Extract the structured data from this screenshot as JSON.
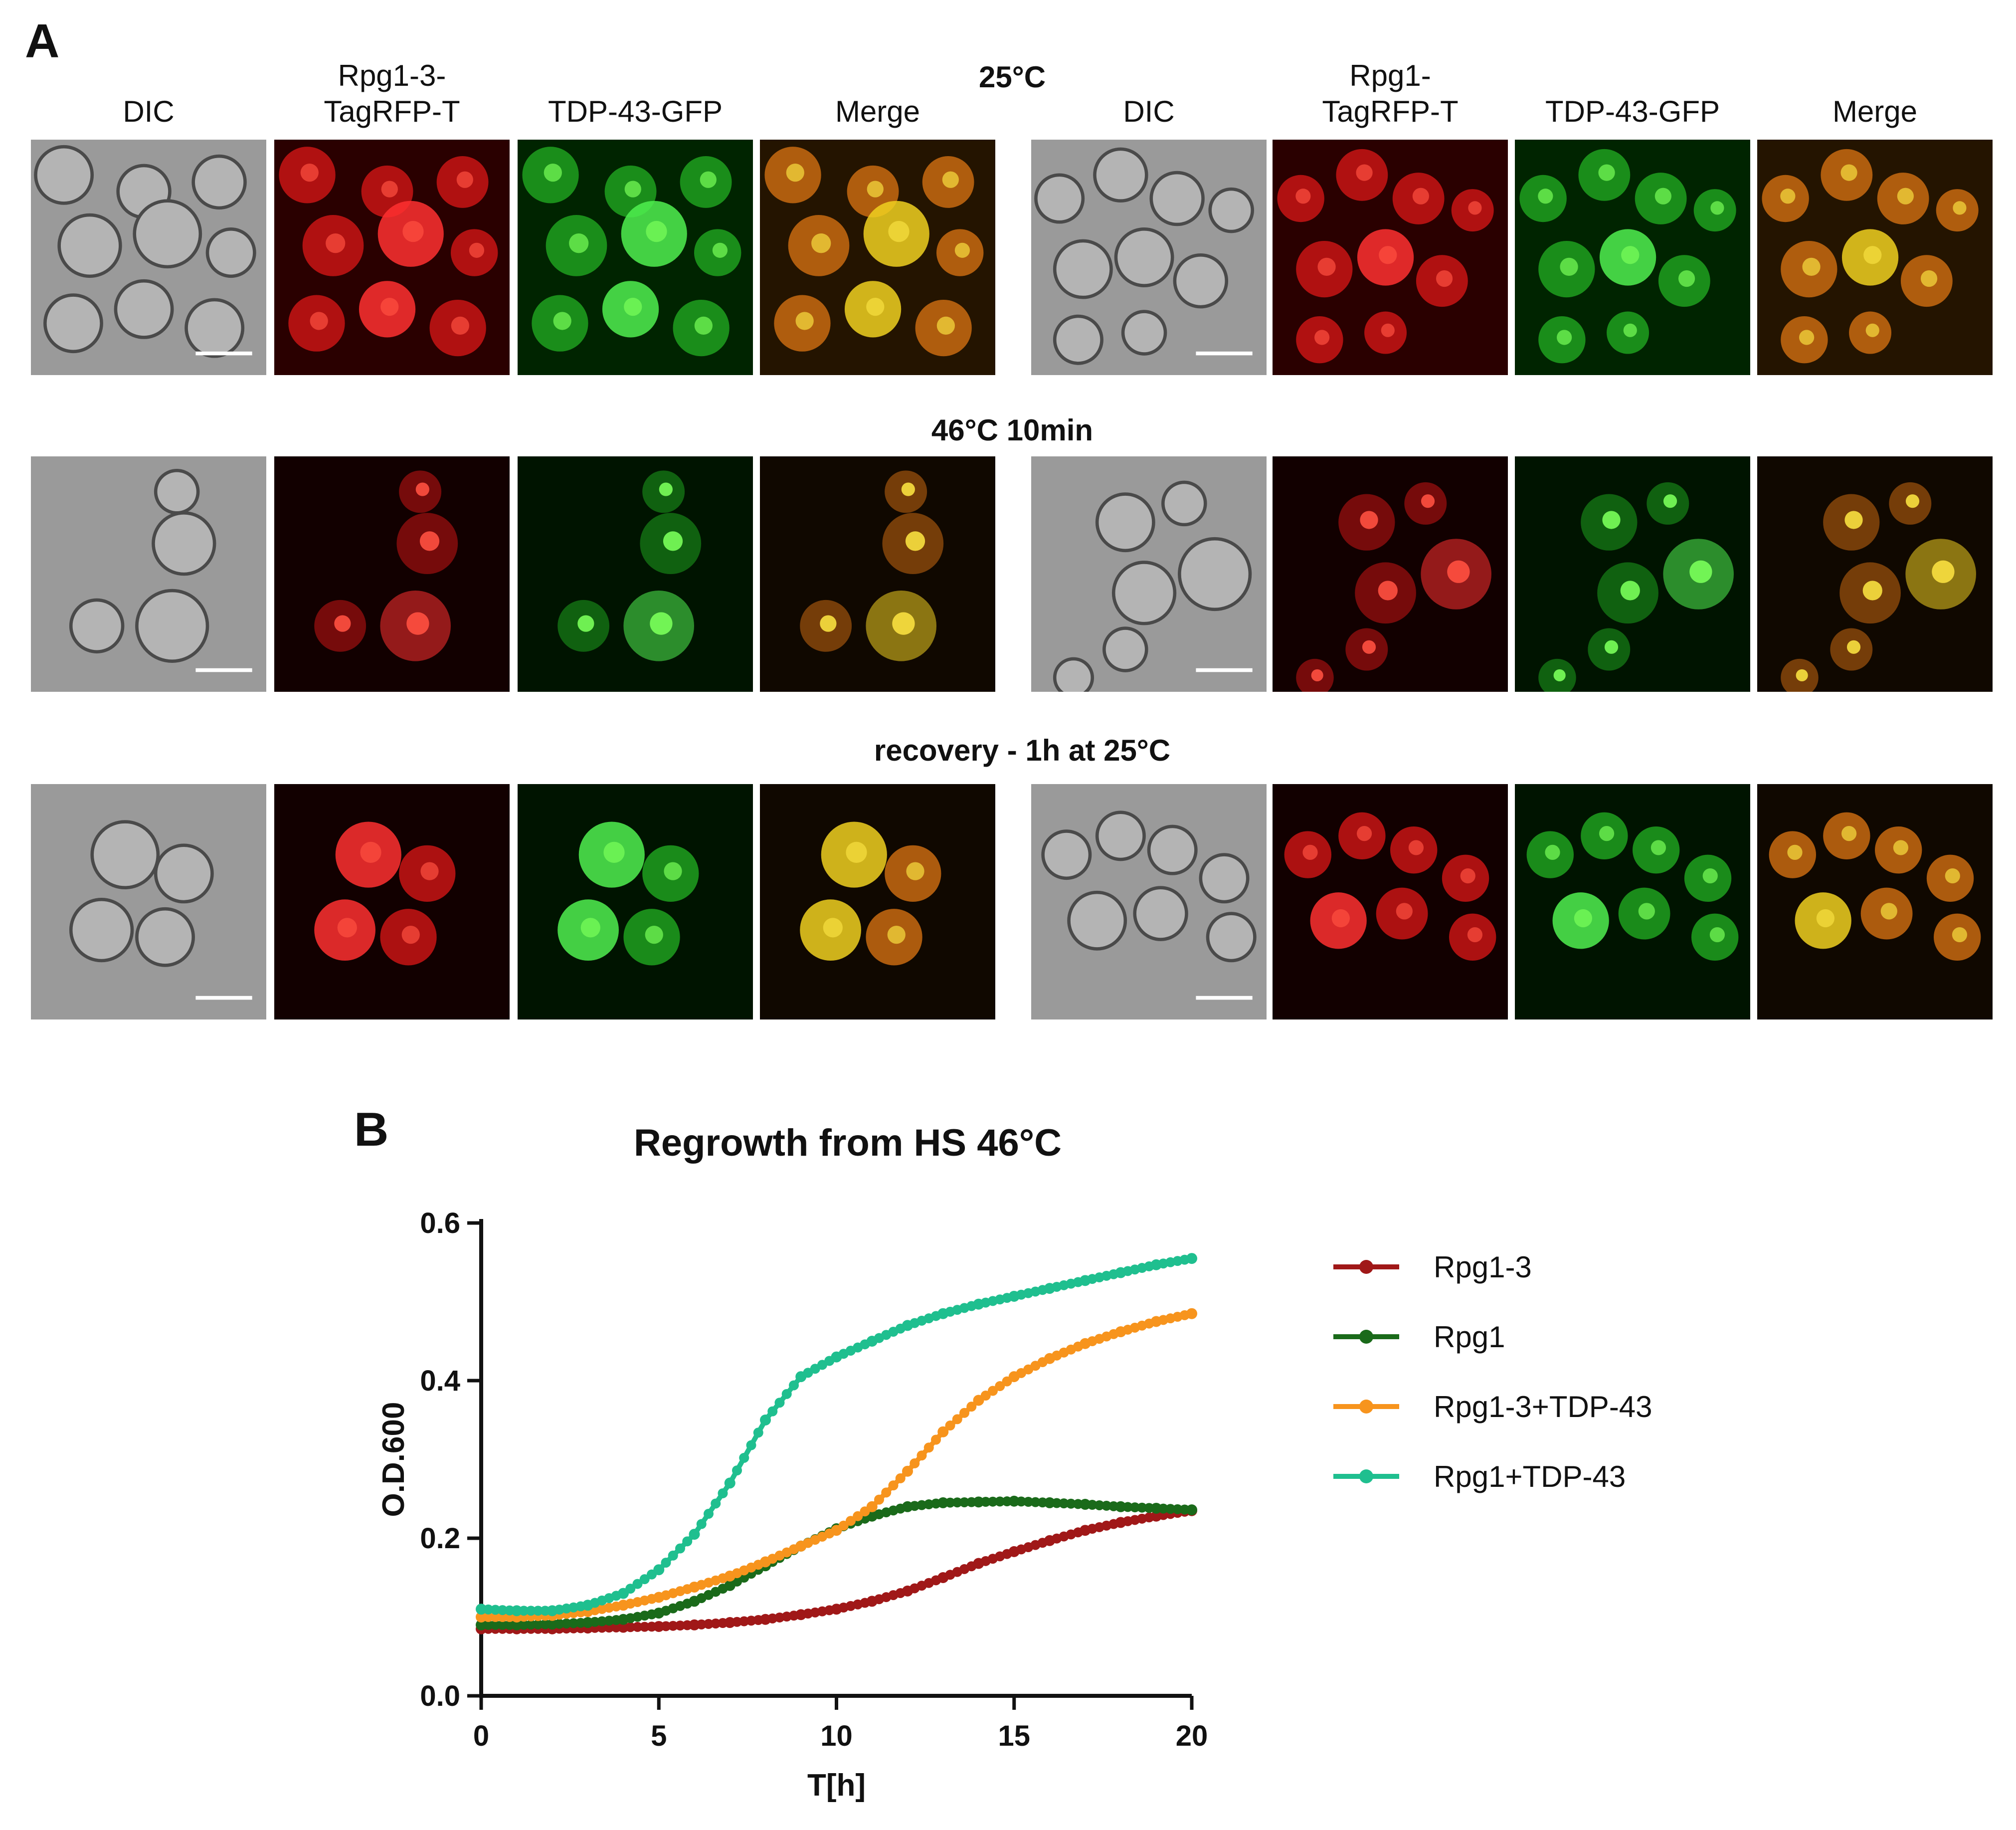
{
  "panel_a": {
    "letter": "A",
    "left_columns": [
      "DIC",
      "Rpg1-3-\nTagRFP-T",
      "TDP-43-GFP",
      "Merge"
    ],
    "right_columns": [
      "DIC",
      "Rpg1-\nTagRFP-T",
      "TDP-43-GFP",
      "Merge"
    ],
    "rows": [
      {
        "title": "25°C"
      },
      {
        "title": "46°C 10min"
      },
      {
        "title": "recovery - 1h at 25°C"
      }
    ],
    "channel_colors": {
      "dic": "#8a8a8a",
      "red": "#e01818",
      "green": "#22d022",
      "merge": "#e08a10"
    }
  },
  "panel_b": {
    "letter": "B",
    "chart_data": {
      "type": "line",
      "title": "Regrowth from HS 46°C",
      "xlabel": "T[h]",
      "ylabel": "O.D.600",
      "xlim": [
        0,
        20
      ],
      "ylim": [
        0.0,
        0.6
      ],
      "xticks": [
        "0",
        "5",
        "10",
        "15",
        "20"
      ],
      "yticks": [
        "0.0",
        "0.2",
        "0.4",
        "0.6"
      ],
      "grid": false,
      "legend": "right",
      "x": [
        0,
        1,
        2,
        3,
        4,
        5,
        6,
        7,
        8,
        9,
        10,
        11,
        12,
        13,
        14,
        15,
        16,
        17,
        18,
        19,
        20
      ],
      "series": [
        {
          "name": "Rpg1-3",
          "color": "#a01818",
          "values": [
            0.085,
            0.085,
            0.085,
            0.086,
            0.087,
            0.088,
            0.09,
            0.093,
            0.097,
            0.103,
            0.11,
            0.12,
            0.133,
            0.15,
            0.168,
            0.183,
            0.197,
            0.21,
            0.22,
            0.228,
            0.235
          ]
        },
        {
          "name": "Rpg1",
          "color": "#1a6a1a",
          "values": [
            0.09,
            0.09,
            0.091,
            0.093,
            0.097,
            0.105,
            0.12,
            0.14,
            0.165,
            0.19,
            0.212,
            0.228,
            0.24,
            0.245,
            0.246,
            0.247,
            0.245,
            0.243,
            0.24,
            0.238,
            0.236
          ]
        },
        {
          "name": "Rpg1-3+TDP-43",
          "color": "#f7941d",
          "values": [
            0.1,
            0.1,
            0.102,
            0.107,
            0.115,
            0.125,
            0.138,
            0.152,
            0.17,
            0.19,
            0.21,
            0.24,
            0.285,
            0.335,
            0.375,
            0.405,
            0.428,
            0.447,
            0.462,
            0.475,
            0.485
          ]
        },
        {
          "name": "Rpg1+TDP-43",
          "color": "#1fbf8f",
          "values": [
            0.11,
            0.108,
            0.108,
            0.115,
            0.13,
            0.16,
            0.205,
            0.27,
            0.35,
            0.405,
            0.43,
            0.45,
            0.47,
            0.485,
            0.497,
            0.507,
            0.517,
            0.527,
            0.537,
            0.547,
            0.555
          ]
        }
      ]
    }
  }
}
